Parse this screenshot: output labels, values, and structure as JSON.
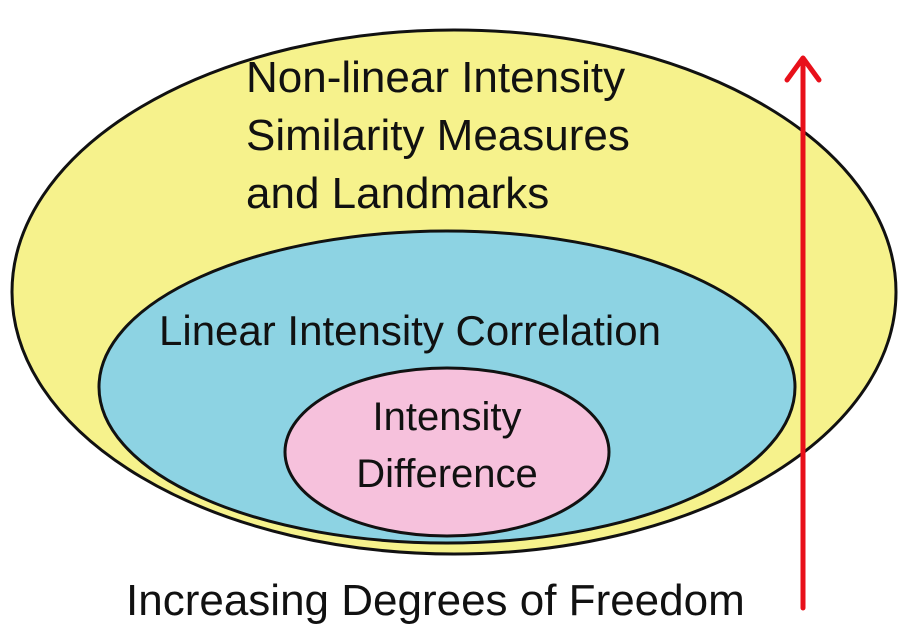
{
  "outer_set": {
    "label_lines": [
      "Non-linear Intensity",
      "Similarity Measures",
      "and Landmarks"
    ],
    "color": "#F6F28C"
  },
  "middle_set": {
    "label_lines": [
      "Linear Intensity Correlation"
    ],
    "color": "#8DD3E3"
  },
  "inner_set": {
    "label_lines": [
      "Intensity",
      "Difference"
    ],
    "color": "#F6C1DC"
  },
  "arrow": {
    "color": "#E8101A"
  },
  "axis_caption": "Increasing Degrees of Freedom"
}
